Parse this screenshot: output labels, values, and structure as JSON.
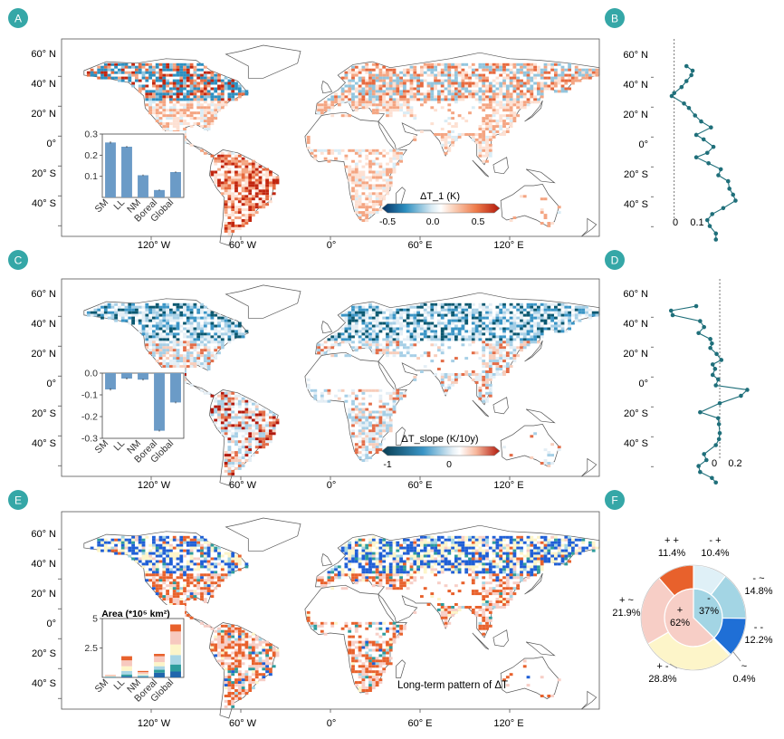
{
  "panel_letters": [
    "A",
    "B",
    "C",
    "D",
    "E",
    "F"
  ],
  "map_axes": {
    "lat_labels": [
      "60° N",
      "40° N",
      "20° N",
      "0°",
      "20° S",
      "40° S"
    ],
    "lon_labels": [
      "120° W",
      "60° W",
      "0°",
      "60° E",
      "120° E"
    ]
  },
  "panel_A": {
    "colorbar_title": "ΔT_1 (K)",
    "colorbar_ticks": [
      "-0.5",
      "0.0",
      "0.5"
    ]
  },
  "panel_C": {
    "colorbar_title": "ΔT_slope (K/10y)",
    "colorbar_ticks": [
      "-1",
      "0"
    ]
  },
  "panel_E": {
    "map_title": "Long-term pattern of ΔT",
    "inset_title": "Area (*10⁵ km²)"
  },
  "chart_data": [
    {
      "panel": "A-inset",
      "type": "bar",
      "categories": [
        "SM",
        "LL",
        "NM",
        "Boreal",
        "Global"
      ],
      "values": [
        0.26,
        0.24,
        0.105,
        0.035,
        0.12
      ],
      "errors": [
        0.005,
        0.004,
        0.003,
        0.003,
        0.003
      ],
      "ylim": [
        0,
        0.3
      ],
      "yticks": [
        0.1,
        0.2,
        0.3
      ],
      "ytick_labels": [
        "0.1",
        "0.2",
        "0.3"
      ],
      "color": "#6b9bc7"
    },
    {
      "panel": "C-inset",
      "type": "bar",
      "categories": [
        "SM",
        "LL",
        "NM",
        "Boreal",
        "Global"
      ],
      "values": [
        -0.075,
        -0.025,
        -0.03,
        -0.265,
        -0.135
      ],
      "errors": [
        0.005,
        0.004,
        0.004,
        0.004,
        0.004
      ],
      "ylim": [
        -0.3,
        0
      ],
      "yticks": [
        0.0,
        -0.1,
        -0.2,
        -0.3
      ],
      "ytick_labels": [
        "0.0",
        "-0.1",
        "-0.2",
        "-0.3"
      ],
      "color": "#6b9bc7"
    },
    {
      "panel": "E-inset",
      "type": "bar",
      "stacked": true,
      "categories": [
        "SM",
        "LL",
        "NM",
        "Boreal",
        "Global"
      ],
      "ylim": [
        0,
        5
      ],
      "yticks": [
        2.5,
        5
      ],
      "ytick_labels": [
        "2.5",
        "5"
      ],
      "series": [
        {
          "color": "#2166ac",
          "values": [
            0.02,
            0.1,
            0.05,
            0.4,
            0.5
          ]
        },
        {
          "color": "#2d9c9c",
          "values": [
            0.02,
            0.15,
            0.05,
            0.25,
            0.6
          ]
        },
        {
          "color": "#a9d6e5",
          "values": [
            0.03,
            0.3,
            0.1,
            0.3,
            0.8
          ]
        },
        {
          "color": "#fdf5c9",
          "values": [
            0.03,
            0.4,
            0.1,
            0.35,
            0.9
          ]
        },
        {
          "color": "#f7c9bf",
          "values": [
            0.05,
            0.5,
            0.15,
            0.5,
            1.1
          ]
        },
        {
          "color": "#e8612c",
          "values": [
            0.03,
            0.35,
            0.1,
            0.2,
            0.6
          ]
        }
      ]
    },
    {
      "panel": "B",
      "type": "line",
      "x_axis_ticks": [
        0,
        0.1
      ],
      "x_axis_tick_labels": [
        "0",
        "0.1"
      ],
      "xlim": [
        -0.01,
        0.3
      ],
      "dashed_ref_x": 0,
      "points": [
        {
          "lat": 68,
          "value": 0.05
        },
        {
          "lat": 65,
          "value": 0.075
        },
        {
          "lat": 62,
          "value": 0.07
        },
        {
          "lat": 58,
          "value": 0.05
        },
        {
          "lat": 54,
          "value": 0.03
        },
        {
          "lat": 50,
          "value": 0.0
        },
        {
          "lat": 48,
          "value": -0.01
        },
        {
          "lat": 43,
          "value": 0.04
        },
        {
          "lat": 40,
          "value": 0.06
        },
        {
          "lat": 35,
          "value": 0.085
        },
        {
          "lat": 31,
          "value": 0.11
        },
        {
          "lat": 27,
          "value": 0.15
        },
        {
          "lat": 22,
          "value": 0.09
        },
        {
          "lat": 19,
          "value": 0.12
        },
        {
          "lat": 14,
          "value": 0.16
        },
        {
          "lat": 10,
          "value": 0.135
        },
        {
          "lat": 7,
          "value": 0.09
        },
        {
          "lat": 3,
          "value": 0.14
        },
        {
          "lat": -1,
          "value": 0.19
        },
        {
          "lat": -5,
          "value": 0.18
        },
        {
          "lat": -9,
          "value": 0.22
        },
        {
          "lat": -14,
          "value": 0.225
        },
        {
          "lat": -18,
          "value": 0.24
        },
        {
          "lat": -22,
          "value": 0.25
        },
        {
          "lat": -27,
          "value": 0.2
        },
        {
          "lat": -31,
          "value": 0.155
        },
        {
          "lat": -35,
          "value": 0.135
        },
        {
          "lat": -39,
          "value": 0.145
        },
        {
          "lat": -44,
          "value": 0.17
        },
        {
          "lat": -48,
          "value": 0.17
        }
      ]
    },
    {
      "panel": "D",
      "type": "line",
      "x_axis_ticks": [
        0,
        0.2
      ],
      "x_axis_tick_labels": [
        "0",
        "0.2"
      ],
      "xlim": [
        -0.75,
        0.38
      ],
      "dashed_ref_x": 0,
      "points": [
        {
          "lat": 68,
          "value": -0.3
        },
        {
          "lat": 65,
          "value": -0.62
        },
        {
          "lat": 62,
          "value": -0.6
        },
        {
          "lat": 58,
          "value": -0.25
        },
        {
          "lat": 54,
          "value": -0.2
        },
        {
          "lat": 50,
          "value": -0.27
        },
        {
          "lat": 46,
          "value": -0.12
        },
        {
          "lat": 43,
          "value": -0.1
        },
        {
          "lat": 40,
          "value": -0.12
        },
        {
          "lat": 36,
          "value": -0.04
        },
        {
          "lat": 32,
          "value": 0.02
        },
        {
          "lat": 29,
          "value": -0.09
        },
        {
          "lat": 26,
          "value": -0.06
        },
        {
          "lat": 22,
          "value": -0.09
        },
        {
          "lat": 19,
          "value": -0.02
        },
        {
          "lat": 15,
          "value": -0.05
        },
        {
          "lat": 12,
          "value": 0.35
        },
        {
          "lat": 8,
          "value": 0.27
        },
        {
          "lat": 3,
          "value": 0.0
        },
        {
          "lat": -3,
          "value": -0.25
        },
        {
          "lat": -7,
          "value": -0.02
        },
        {
          "lat": -11,
          "value": -0.01
        },
        {
          "lat": -17,
          "value": 0.0
        },
        {
          "lat": -21,
          "value": -0.01
        },
        {
          "lat": -25,
          "value": -0.05
        },
        {
          "lat": -31,
          "value": -0.2
        },
        {
          "lat": -35,
          "value": -0.17
        },
        {
          "lat": -39,
          "value": -0.27
        },
        {
          "lat": -43,
          "value": -0.25
        },
        {
          "lat": -47,
          "value": -0.1
        },
        {
          "lat": -50,
          "value": -0.05
        }
      ]
    },
    {
      "panel": "F",
      "type": "pie",
      "inner": [
        {
          "label": "+",
          "value_label": "62%",
          "value": 62,
          "color": "#f7cec6"
        },
        {
          "label": "-",
          "value_label": "37%",
          "value": 37,
          "color": "#a3d5e4"
        }
      ],
      "outer": [
        {
          "label": "+ +",
          "value_label": "11.4%",
          "value": 11.4,
          "color": "#e8612c"
        },
        {
          "label": "- +",
          "value_label": "10.4%",
          "value": 10.4,
          "color": "#dff0f7"
        },
        {
          "label": "- ~",
          "value_label": "14.8%",
          "value": 14.8,
          "color": "#a3d5e4"
        },
        {
          "label": "- -",
          "value_label": "12.2%",
          "value": 12.2,
          "color": "#1f6fd6"
        },
        {
          "label": "~",
          "value_label": "0.4%",
          "value": 0.4,
          "color": "#2d9c9c"
        },
        {
          "label": "+ -",
          "value_label": "28.8%",
          "value": 28.8,
          "color": "#fdf5c9"
        },
        {
          "label": "+ ~",
          "value_label": "21.9%",
          "value": 21.9,
          "color": "#f7cec6"
        }
      ]
    }
  ]
}
